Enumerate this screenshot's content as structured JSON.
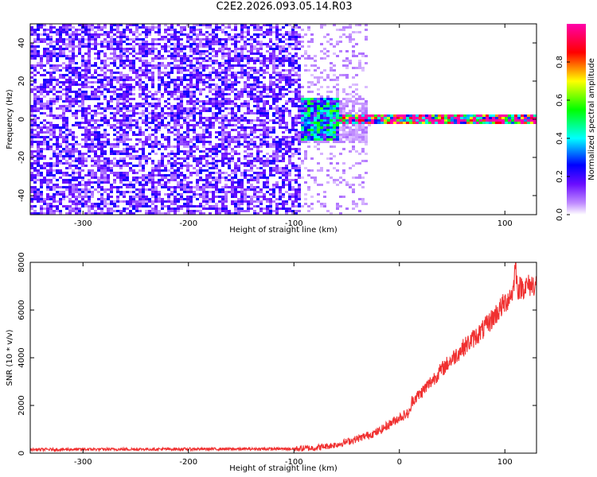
{
  "title": "C2E2.2026.093.05.14.R03",
  "chart_data": [
    {
      "type": "heatmap",
      "xlabel": "Height of straight line (km)",
      "ylabel": "Frequency (Hz)",
      "xlim": [
        -350,
        130
      ],
      "ylim": [
        -50,
        50
      ],
      "xticks": [
        -300,
        -200,
        -100,
        0,
        100
      ],
      "yticks": [
        -40,
        -20,
        0,
        20,
        40
      ],
      "colorbar": {
        "label": "Normalized spectral amplitude",
        "range": [
          0,
          1
        ],
        "ticks": [
          0.0,
          0.2,
          0.4,
          0.6,
          0.8
        ],
        "colors": [
          "#ffffff",
          "#6a0dff",
          "#0000ff",
          "#00ffff",
          "#00ff00",
          "#ffff00",
          "#ff0000",
          "#ff00aa"
        ]
      },
      "regions": [
        {
          "x_range": [
            -350,
            -95
          ],
          "f_range": [
            -50,
            50
          ],
          "amplitude": 0.15
        },
        {
          "x_range": [
            -95,
            -30
          ],
          "f_range": [
            -50,
            50
          ],
          "amplitude": 0.05
        },
        {
          "x_range": [
            -95,
            -60
          ],
          "f_range": [
            -10,
            12
          ],
          "amplitude": 0.35
        },
        {
          "x_range": [
            -60,
            130
          ],
          "f_range": [
            -2,
            3
          ],
          "amplitude": 0.75
        },
        {
          "x_range": [
            0,
            130
          ],
          "f_range": [
            0,
            1
          ],
          "amplitude": 0.95
        }
      ]
    },
    {
      "type": "line",
      "xlabel": "Height of straight line (km)",
      "ylabel": "SNR (10 * v/v)",
      "xlim": [
        -350,
        130
      ],
      "ylim": [
        0,
        8000
      ],
      "xticks": [
        -300,
        -200,
        -100,
        0,
        100
      ],
      "yticks": [
        0,
        2000,
        4000,
        6000,
        8000
      ],
      "series": [
        {
          "color": "#f03030",
          "x": [
            -350,
            -300,
            -200,
            -100,
            -80,
            -60,
            -40,
            -20,
            0,
            10,
            12,
            20,
            40,
            60,
            80,
            100,
            108,
            110,
            112,
            120,
            130
          ],
          "y": [
            150,
            160,
            170,
            180,
            220,
            350,
            600,
            900,
            1500,
            1700,
            2200,
            2500,
            3500,
            4400,
            5200,
            6300,
            6800,
            8000,
            6900,
            7000,
            7100
          ]
        }
      ]
    }
  ]
}
